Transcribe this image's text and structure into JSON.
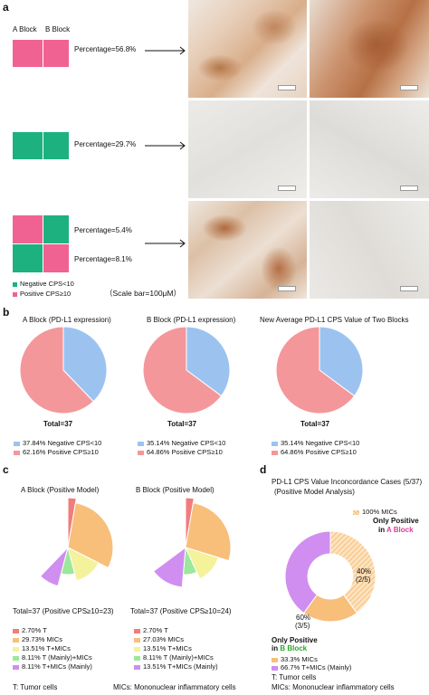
{
  "panel_a": {
    "letter": "a",
    "col_a": "A Block",
    "col_b": "B Block",
    "pct1": "Percentage=56.8%",
    "pct2": "Percentage=29.7%",
    "pct3": "Percentage=5.4%",
    "pct4": "Percentage=8.1%",
    "legend_neg": "Negative CPS<10",
    "legend_pos": "Positive CPS≥10",
    "scale": "（Scale bar=100μM）",
    "colors": {
      "negative": "#1db17f",
      "positive": "#f06292"
    }
  },
  "panel_b": {
    "letter": "b",
    "titles": [
      "A Block (PD-L1 expression)",
      "B Block (PD-L1 expression)",
      "New Average PD-L1 CPS Value of Two Blocks"
    ],
    "totals": [
      "Total=37",
      "Total=37",
      "Total=37"
    ],
    "legends": [
      [
        "37.84%  Negative CPS<10",
        "62.16%  Positive CPS≥10"
      ],
      [
        "35.14%  Negative CPS<10",
        "64.86%  Positive CPS≥10"
      ],
      [
        "35.14%  Negative CPS<10",
        "64.86%  Positive CPS≥10"
      ]
    ],
    "colors": {
      "negative": "#9cc3f0",
      "positive": "#f4979b"
    }
  },
  "panel_c": {
    "letter": "c",
    "titles": [
      "A Block (Positive Model)",
      "B Block (Positive Model)"
    ],
    "totals": [
      "Total=37 (Positive CPS≥10=23)",
      "Total=37 (Positive CPS≥10=24)"
    ],
    "legend_a": [
      "2.70%  T",
      "29.73%  MICs",
      "13.51%  T+MICs",
      "8.11%  T (Mainly)+MICs",
      "8.11%  T+MICs (Mainly)"
    ],
    "legend_b": [
      "2.70%  T",
      "27.03%  MICs",
      "13.51%  T+MICs",
      "8.11%  T (Mainly)+MICs",
      "13.51%  T+MICs (Mainly)"
    ],
    "colors": [
      "#f07c7c",
      "#f7bf7a",
      "#f4f29a",
      "#9be89a",
      "#cf8ef0"
    ],
    "foot_t": "T: Tumor cells",
    "foot_mics": "MICs: Mononuclear inflammatory cells"
  },
  "panel_d": {
    "letter": "d",
    "title1": "PD-L1 CPS Value Inconcordance Cases (5/37)",
    "title2": "(Positive Model Analysis)",
    "legend_top": "100%  MICs",
    "only_pos": "Only Positive",
    "in": "in",
    "a_block": "A Block",
    "b_block": "B Block",
    "label_40": "40%",
    "label_25": "(2/5)",
    "label_60": "60%",
    "label_35": "(3/5)",
    "legend_b": [
      "33.3%  MICs",
      "66.7%  T+MICs (Mainly)"
    ],
    "foot_t": "T: Tumor cells",
    "foot_mics": "MICs: Mononuclear inflammatory cells",
    "colors": {
      "mics": "#f7bf7a",
      "mainly": "#cf8ef0",
      "a_block": "#e0399b",
      "b_block": "#2aa82a"
    }
  },
  "chart_data": [
    {
      "type": "pie",
      "title": "A Block (PD-L1 expression)",
      "categories": [
        "Negative CPS<10",
        "Positive CPS≥10"
      ],
      "values": [
        37.84,
        62.16
      ]
    },
    {
      "type": "pie",
      "title": "B Block (PD-L1 expression)",
      "categories": [
        "Negative CPS<10",
        "Positive CPS≥10"
      ],
      "values": [
        35.14,
        64.86
      ]
    },
    {
      "type": "pie",
      "title": "New Average PD-L1 CPS Value of Two Blocks",
      "categories": [
        "Negative CPS<10",
        "Positive CPS≥10"
      ],
      "values": [
        35.14,
        64.86
      ]
    },
    {
      "type": "pie",
      "title": "A Block (Positive Model)",
      "categories": [
        "T",
        "MICs",
        "T+MICs",
        "T (Mainly)+MICs",
        "T+MICs (Mainly)"
      ],
      "values": [
        2.7,
        29.73,
        13.51,
        8.11,
        8.11
      ]
    },
    {
      "type": "pie",
      "title": "B Block (Positive Model)",
      "categories": [
        "T",
        "MICs",
        "T+MICs",
        "T (Mainly)+MICs",
        "T+MICs (Mainly)"
      ],
      "values": [
        2.7,
        27.03,
        13.51,
        8.11,
        13.51
      ]
    },
    {
      "type": "pie",
      "title": "PD-L1 CPS Value Inconcordance Cases (5/37)",
      "categories": [
        "Only Positive in A Block",
        "Only Positive in B Block"
      ],
      "values": [
        40,
        60
      ]
    }
  ]
}
